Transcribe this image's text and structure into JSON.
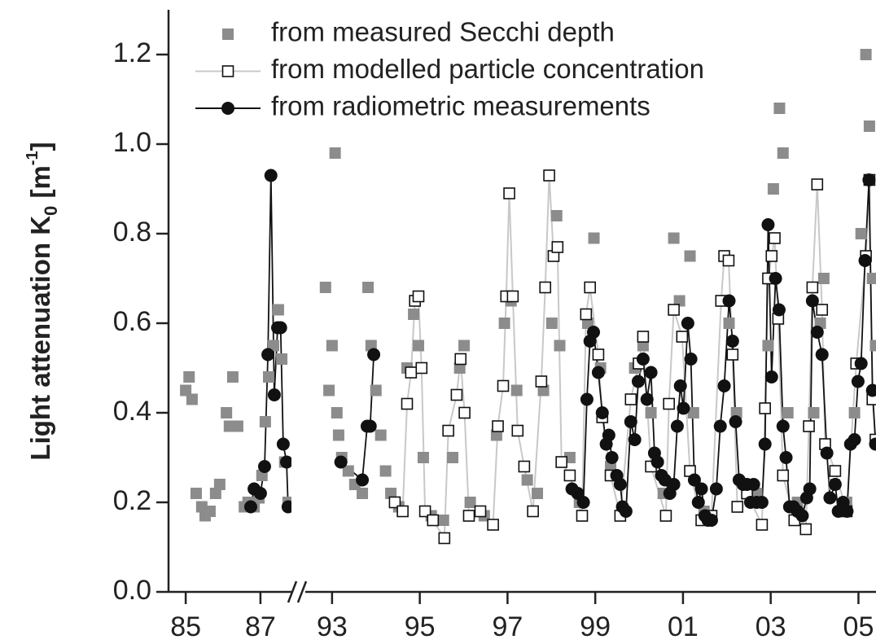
{
  "chart_data": {
    "type": "scatter",
    "ylabel": [
      "Light attenuation K",
      "0",
      " [m",
      "-1",
      "]"
    ],
    "ylim": [
      0,
      1.3
    ],
    "yticks": [
      {
        "value": 0,
        "label": "0.0"
      },
      0.2,
      0.4,
      0.6,
      0.8,
      {
        "value": 1,
        "label": "1.0"
      },
      1.2
    ],
    "x_segments": [
      {
        "xlim": [
          1985.04,
          1988.33
        ],
        "xticks": [
          {
            "value": 1985.5,
            "label": "85"
          },
          {
            "value": 1987.5,
            "label": "87"
          }
        ]
      },
      {
        "xlim": [
          1992.89,
          2005.9
        ],
        "xticks": [
          {
            "value": 1993.5,
            "label": "93"
          },
          {
            "value": 1995.5,
            "label": "95"
          },
          {
            "value": 1997.5,
            "label": "97"
          },
          {
            "value": 1999.5,
            "label": "99"
          },
          {
            "value": 2001.5,
            "label": "01"
          },
          {
            "value": 2003.5,
            "label": "03"
          },
          {
            "value": 2005.5,
            "label": "05"
          }
        ]
      }
    ],
    "legend": "upper left",
    "series": [
      {
        "name": "from measured Secchi depth",
        "color": "#8c8c8c",
        "marker": "square",
        "line": false,
        "x": [
          1985.5,
          1985.59,
          1985.67,
          1985.78,
          1985.93,
          1986.02,
          1986.15,
          1986.3,
          1986.41,
          1986.59,
          1986.67,
          1986.76,
          1986.89,
          1987.07,
          1987.17,
          1987.33,
          1987.46,
          1987.54,
          1987.63,
          1987.72,
          1987.85,
          1987.98,
          1988.07,
          1988.15,
          1988.24,
          1993.35,
          1993.43,
          1993.5,
          1993.57,
          1993.61,
          1993.65,
          1993.72,
          1993.87,
          1994.02,
          1994.19,
          1994.32,
          1994.39,
          1994.5,
          1994.61,
          1994.72,
          1994.84,
          1995.02,
          1995.21,
          1995.36,
          1995.47,
          1995.58,
          1995.76,
          1996.04,
          1996.25,
          1996.41,
          1996.51,
          1996.65,
          1996.97,
          1997.25,
          1997.43,
          1997.58,
          1997.71,
          1997.95,
          1998.18,
          1998.32,
          1998.51,
          1998.62,
          1998.69,
          1998.92,
          1999.14,
          1999.33,
          1999.47,
          1999.62,
          1999.85,
          2000.12,
          2000.4,
          2000.59,
          2000.77,
          2001.05,
          2001.29,
          2001.42,
          2001.66,
          2001.74,
          2001.98,
          2002.41,
          2002.55,
          2002.72,
          2002.96,
          2003.18,
          2003.44,
          2003.56,
          2003.7,
          2003.78,
          2003.89,
          2004.11,
          2004.48,
          2004.63,
          2004.71,
          2004.95,
          2005.23,
          2005.41,
          2005.56,
          2005.67,
          2005.75,
          2005.82,
          2005.89
        ],
        "values": [
          0.45,
          0.48,
          0.43,
          0.22,
          0.19,
          0.17,
          0.18,
          0.22,
          0.24,
          0.4,
          0.37,
          0.48,
          0.37,
          0.19,
          0.2,
          0.19,
          0.21,
          0.26,
          0.38,
          0.48,
          0.55,
          0.63,
          0.52,
          0.29,
          0.2,
          0.68,
          0.45,
          0.55,
          0.98,
          0.4,
          0.35,
          0.3,
          0.27,
          0.24,
          0.22,
          0.68,
          0.55,
          0.45,
          0.35,
          0.27,
          0.22,
          0.19,
          0.5,
          0.62,
          0.55,
          0.3,
          0.17,
          0.16,
          0.3,
          0.5,
          0.55,
          0.2,
          0.17,
          0.35,
          0.6,
          0.65,
          0.45,
          0.25,
          0.22,
          0.45,
          0.6,
          0.84,
          0.55,
          0.3,
          0.2,
          0.6,
          0.79,
          0.5,
          0.28,
          0.18,
          0.5,
          0.55,
          0.4,
          0.22,
          0.79,
          0.65,
          0.75,
          0.4,
          0.18,
          0.65,
          0.6,
          0.4,
          0.22,
          0.22,
          0.55,
          0.9,
          1.08,
          0.98,
          0.4,
          0.2,
          0.4,
          0.6,
          0.7,
          0.24,
          0.2,
          0.4,
          0.8,
          1.2,
          1.04,
          0.7,
          0.55
        ]
      },
      {
        "name": "from modelled particle concentration",
        "color": "#c8c8c8",
        "marker": "open-square",
        "line": true,
        "x": [
          1994.93,
          1995.11,
          1995.21,
          1995.3,
          1995.39,
          1995.47,
          1995.54,
          1995.62,
          1995.8,
          1996.06,
          1996.15,
          1996.34,
          1996.43,
          1996.52,
          1996.62,
          1996.88,
          1997.17,
          1997.28,
          1997.4,
          1997.47,
          1997.54,
          1997.62,
          1997.73,
          1997.88,
          1998.08,
          1998.27,
          1998.36,
          1998.45,
          1998.55,
          1998.64,
          1998.73,
          1998.92,
          1999.2,
          1999.29,
          1999.38,
          1999.57,
          1999.66,
          1999.85,
          2000.07,
          2000.31,
          2000.49,
          2000.59,
          2000.77,
          2001.11,
          2001.18,
          2001.29,
          2001.48,
          2001.66,
          2001.92,
          2002.15,
          2002.37,
          2002.44,
          2002.54,
          2002.63,
          2002.74,
          2002.96,
          2003.3,
          2003.37,
          2003.44,
          2003.52,
          2003.59,
          2003.67,
          2003.78,
          2004.04,
          2004.3,
          2004.37,
          2004.45,
          2004.56,
          2004.67,
          2004.74,
          2004.97,
          2005.23,
          2005.45,
          2005.67,
          2005.75,
          2005.82,
          2005.89
        ],
        "values": [
          0.2,
          0.18,
          0.42,
          0.49,
          0.65,
          0.66,
          0.5,
          0.18,
          0.16,
          0.12,
          0.36,
          0.44,
          0.52,
          0.4,
          0.17,
          0.18,
          0.15,
          0.37,
          0.46,
          0.66,
          0.89,
          0.66,
          0.36,
          0.28,
          0.18,
          0.47,
          0.68,
          0.93,
          0.75,
          0.77,
          0.29,
          0.26,
          0.17,
          0.62,
          0.68,
          0.53,
          0.39,
          0.26,
          0.17,
          0.43,
          0.51,
          0.57,
          0.28,
          0.17,
          0.42,
          0.63,
          0.57,
          0.27,
          0.16,
          0.17,
          0.65,
          0.75,
          0.74,
          0.53,
          0.19,
          0.22,
          0.15,
          0.41,
          0.7,
          0.75,
          0.79,
          0.61,
          0.26,
          0.16,
          0.14,
          0.37,
          0.68,
          0.91,
          0.63,
          0.33,
          0.27,
          0.18,
          0.51,
          0.75,
          0.92,
          0.43,
          0.34
        ]
      },
      {
        "name": "from radiometric measurements",
        "color": "#111111",
        "marker": "circle",
        "line": true,
        "x": [
          1987.24,
          1987.33,
          1987.5,
          1987.61,
          1987.7,
          1987.78,
          1987.87,
          1987.96,
          1988.04,
          1988.11,
          1988.2,
          1988.24,
          1993.7,
          1994.19,
          1994.3,
          1994.37,
          1994.45,
          null,
          1998.97,
          1999.1,
          1999.23,
          1999.31,
          1999.38,
          1999.46,
          1999.57,
          1999.66,
          1999.75,
          1999.81,
          1999.88,
          1999.99,
          2000.07,
          2000.12,
          2000.2,
          2000.31,
          2000.4,
          2000.48,
          2000.59,
          2000.68,
          2000.77,
          2000.85,
          2000.92,
          2001.01,
          2001.09,
          2001.2,
          2001.29,
          2001.37,
          2001.44,
          2001.51,
          2001.61,
          2001.68,
          2001.76,
          2001.85,
          2001.92,
          2002.0,
          2002.07,
          2002.15,
          2002.26,
          2002.35,
          2002.44,
          2002.55,
          2002.63,
          2002.7,
          2002.78,
          2002.87,
          2002.96,
          2003.04,
          2003.11,
          2003.18,
          2003.3,
          2003.37,
          2003.44,
          2003.52,
          2003.61,
          2003.69,
          2003.78,
          2003.85,
          2003.93,
          2004.02,
          2004.11,
          2004.22,
          2004.32,
          2004.39,
          2004.45,
          2004.56,
          2004.67,
          2004.78,
          2004.85,
          2004.97,
          2005.04,
          2005.15,
          2005.24,
          2005.32,
          2005.41,
          2005.49,
          2005.56,
          2005.65,
          2005.74,
          2005.82,
          2005.89
        ],
        "values": [
          0.19,
          0.23,
          0.22,
          0.28,
          0.53,
          0.93,
          0.44,
          0.59,
          0.59,
          0.33,
          0.29,
          0.19,
          0.29,
          0.25,
          0.37,
          0.37,
          0.53,
          null,
          0.23,
          0.22,
          0.2,
          0.43,
          0.56,
          0.58,
          0.49,
          0.4,
          0.33,
          0.35,
          0.3,
          0.26,
          0.24,
          0.19,
          0.18,
          0.38,
          0.34,
          0.47,
          0.52,
          0.43,
          0.49,
          0.31,
          0.29,
          0.26,
          0.25,
          0.22,
          0.24,
          0.37,
          0.46,
          0.41,
          0.6,
          0.52,
          0.25,
          0.2,
          0.23,
          0.17,
          0.16,
          0.16,
          0.23,
          0.37,
          0.46,
          0.65,
          0.56,
          0.38,
          0.25,
          0.24,
          0.24,
          0.2,
          0.24,
          0.2,
          0.2,
          0.33,
          0.82,
          0.48,
          0.7,
          0.63,
          0.37,
          0.3,
          0.19,
          0.19,
          0.18,
          0.17,
          0.21,
          0.23,
          0.65,
          0.58,
          0.53,
          0.31,
          0.21,
          0.24,
          0.18,
          0.2,
          0.18,
          0.33,
          0.34,
          0.47,
          0.51,
          0.74,
          0.92,
          0.45,
          0.33
        ]
      }
    ]
  }
}
